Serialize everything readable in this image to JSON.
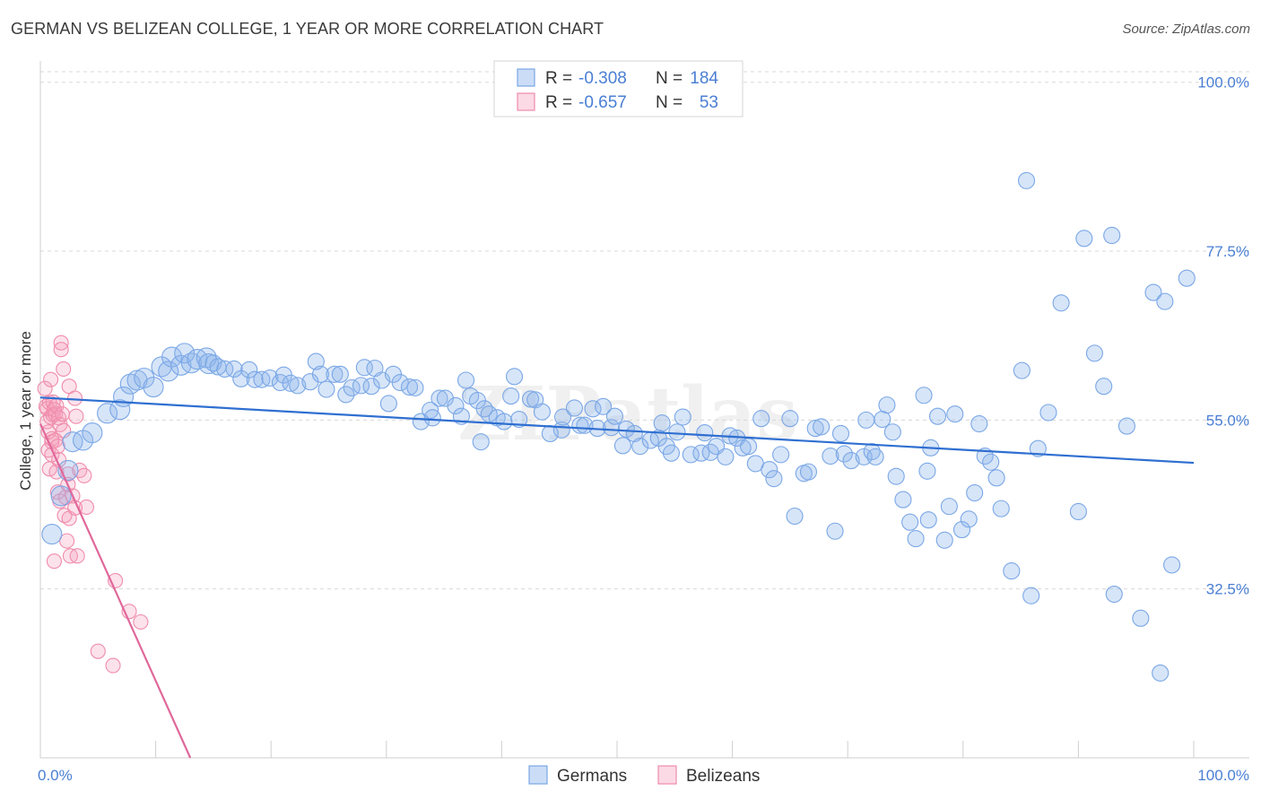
{
  "title": "GERMAN VS BELIZEAN COLLEGE, 1 YEAR OR MORE CORRELATION CHART",
  "source": "Source: ZipAtlas.com",
  "watermark": "ZIPatlas",
  "colors": {
    "german": "#7aa7e6",
    "german_fill": "rgba(140,180,235,0.35)",
    "german_line": "#2f6fd1",
    "belizean": "#f08cab",
    "belizean_fill": "rgba(245,160,190,0.30)",
    "belizean_line": "#e0689a",
    "grid": "#d8d8d8",
    "tick_label": "#4a7fd4"
  },
  "legend": {
    "rows": [
      {
        "r_label": "R = ",
        "r_value": "-0.308",
        "n_label": "N = ",
        "n_value": "184",
        "series": "german"
      },
      {
        "r_label": "R = ",
        "r_value": "-0.657",
        "n_label": "N = ",
        "n_value": "53",
        "series": "belizean"
      }
    ]
  },
  "bottom_legend": [
    {
      "label": "Germans",
      "series": "german"
    },
    {
      "label": "Belizeans",
      "series": "belizean"
    }
  ],
  "chart_data": {
    "type": "scatter",
    "title": "GERMAN VS BELIZEAN COLLEGE, 1 YEAR OR MORE CORRELATION CHART",
    "xlabel": "",
    "ylabel": "College, 1 year or more",
    "xlim": [
      0,
      100
    ],
    "ylim": [
      10,
      102
    ],
    "x_tick_labels": [
      {
        "value": 0,
        "label": "0.0%"
      },
      {
        "value": 100,
        "label": "100.0%"
      }
    ],
    "y_tick_labels": [
      {
        "value": 100,
        "label": "100.0%"
      },
      {
        "value": 77.5,
        "label": "77.5%"
      },
      {
        "value": 55,
        "label": "55.0%"
      },
      {
        "value": 32.5,
        "label": "32.5%"
      }
    ],
    "series": [
      {
        "name": "Germans",
        "key": "german",
        "R": -0.308,
        "N": 184,
        "trend": {
          "x0": 0,
          "y0": 58.0,
          "x1": 100,
          "y1": 49.3
        },
        "points": [
          [
            1,
            39.8
          ],
          [
            1.8,
            44.9
          ],
          [
            2.4,
            48.3
          ],
          [
            2.8,
            52.1
          ],
          [
            3.7,
            52.3
          ],
          [
            4.5,
            53.3
          ],
          [
            5.8,
            55.9
          ],
          [
            6.9,
            56.4
          ],
          [
            7.2,
            58.1
          ],
          [
            7.8,
            59.8
          ],
          [
            8.4,
            60.3
          ],
          [
            9,
            60.6
          ],
          [
            9.8,
            59.4
          ],
          [
            10.5,
            62.1
          ],
          [
            11.1,
            61.5
          ],
          [
            11.4,
            63.4
          ],
          [
            12.2,
            62.3
          ],
          [
            12.5,
            63.9
          ],
          [
            13.1,
            62.6
          ],
          [
            13.6,
            63.1
          ],
          [
            14.4,
            63.3
          ],
          [
            14.6,
            62.5
          ],
          [
            15,
            62.6
          ],
          [
            15.4,
            62.1
          ],
          [
            16,
            61.8
          ],
          [
            16.8,
            61.8
          ],
          [
            17.4,
            60.5
          ],
          [
            18.1,
            61.7
          ],
          [
            18.6,
            60.4
          ],
          [
            19.2,
            60.4
          ],
          [
            19.9,
            60.6
          ],
          [
            20.8,
            60
          ],
          [
            21.1,
            61
          ],
          [
            21.7,
            59.9
          ],
          [
            22.3,
            59.6
          ],
          [
            23.4,
            60.1
          ],
          [
            23.9,
            62.8
          ],
          [
            24.3,
            61.1
          ],
          [
            24.8,
            59.1
          ],
          [
            25.5,
            61.1
          ],
          [
            26,
            61.1
          ],
          [
            26.5,
            58.4
          ],
          [
            27,
            59.3
          ],
          [
            27.8,
            59.6
          ],
          [
            28.1,
            62
          ],
          [
            28.7,
            59.5
          ],
          [
            29,
            61.9
          ],
          [
            29.6,
            60.3
          ],
          [
            30.2,
            57.2
          ],
          [
            30.6,
            61.1
          ],
          [
            31.2,
            60
          ],
          [
            32,
            59.4
          ],
          [
            32.5,
            59.3
          ],
          [
            33,
            54.8
          ],
          [
            33.8,
            56.3
          ],
          [
            34,
            55.3
          ],
          [
            34.6,
            57.9
          ],
          [
            35.1,
            57.9
          ],
          [
            36,
            56.9
          ],
          [
            36.5,
            55.5
          ],
          [
            36.9,
            60.3
          ],
          [
            37.3,
            58.2
          ],
          [
            37.9,
            57.6
          ],
          [
            38.2,
            52.1
          ],
          [
            38.5,
            56.5
          ],
          [
            38.9,
            55.8
          ],
          [
            39.6,
            55.3
          ],
          [
            40.2,
            54.8
          ],
          [
            40.8,
            58.2
          ],
          [
            41.1,
            60.8
          ],
          [
            41.5,
            55.1
          ],
          [
            42.5,
            57.8
          ],
          [
            42.9,
            57.7
          ],
          [
            43.5,
            56.1
          ],
          [
            44.2,
            53.2
          ],
          [
            45.2,
            53.7
          ],
          [
            45.3,
            55.4
          ],
          [
            46.3,
            56.6
          ],
          [
            46.8,
            54.3
          ],
          [
            47.2,
            54.3
          ],
          [
            47.9,
            56.5
          ],
          [
            48.3,
            53.9
          ],
          [
            48.8,
            56.8
          ],
          [
            49.5,
            54
          ],
          [
            49.8,
            55.5
          ],
          [
            50.5,
            51.6
          ],
          [
            50.8,
            53.8
          ],
          [
            51.5,
            53.2
          ],
          [
            52,
            51.5
          ],
          [
            52.9,
            52.3
          ],
          [
            53.6,
            52.6
          ],
          [
            53.9,
            54.6
          ],
          [
            54.3,
            51.5
          ],
          [
            54.7,
            50.6
          ],
          [
            55.2,
            53.4
          ],
          [
            55.7,
            55.4
          ],
          [
            56.4,
            50.4
          ],
          [
            57.3,
            50.6
          ],
          [
            57.6,
            53.3
          ],
          [
            58.1,
            50.7
          ],
          [
            58.6,
            51.5
          ],
          [
            59.4,
            50.1
          ],
          [
            59.8,
            52.9
          ],
          [
            60.4,
            52.6
          ],
          [
            60.9,
            51.3
          ],
          [
            61.4,
            51.5
          ],
          [
            62,
            49.2
          ],
          [
            62.5,
            55.2
          ],
          [
            63.2,
            48.4
          ],
          [
            63.6,
            47.2
          ],
          [
            64.2,
            50.4
          ],
          [
            65,
            55.2
          ],
          [
            65.4,
            42.2
          ],
          [
            66.2,
            47.9
          ],
          [
            66.6,
            48.1
          ],
          [
            67.2,
            53.9
          ],
          [
            67.7,
            54.1
          ],
          [
            68.5,
            50.2
          ],
          [
            68.9,
            40.2
          ],
          [
            69.4,
            53.2
          ],
          [
            69.7,
            50.5
          ],
          [
            70.3,
            49.6
          ],
          [
            71.4,
            50.1
          ],
          [
            71.6,
            55
          ],
          [
            72.1,
            50.8
          ],
          [
            72.4,
            50.1
          ],
          [
            73,
            55.1
          ],
          [
            73.4,
            57
          ],
          [
            73.9,
            53.4
          ],
          [
            74.2,
            47.5
          ],
          [
            74.8,
            44.4
          ],
          [
            75.4,
            41.4
          ],
          [
            75.9,
            39.2
          ],
          [
            76.6,
            58.3
          ],
          [
            76.9,
            48.2
          ],
          [
            77,
            41.7
          ],
          [
            77.2,
            51.3
          ],
          [
            77.8,
            55.5
          ],
          [
            78.4,
            39
          ],
          [
            78.8,
            43.5
          ],
          [
            79.3,
            55.8
          ],
          [
            79.9,
            40.4
          ],
          [
            80.5,
            41.8
          ],
          [
            81,
            45.3
          ],
          [
            81.4,
            54.5
          ],
          [
            81.9,
            50.2
          ],
          [
            82.4,
            49.4
          ],
          [
            82.9,
            47.3
          ],
          [
            83.3,
            43.2
          ],
          [
            84.2,
            34.9
          ],
          [
            85.1,
            61.6
          ],
          [
            85.5,
            86.9
          ],
          [
            85.9,
            31.6
          ],
          [
            86.5,
            51.2
          ],
          [
            87.4,
            56
          ],
          [
            88.5,
            70.6
          ],
          [
            90,
            42.8
          ],
          [
            90.5,
            79.2
          ],
          [
            91.4,
            63.9
          ],
          [
            92.2,
            59.5
          ],
          [
            92.9,
            79.6
          ],
          [
            93.1,
            31.8
          ],
          [
            94.2,
            54.2
          ],
          [
            95.4,
            28.6
          ],
          [
            96.5,
            72
          ],
          [
            97.5,
            70.8
          ],
          [
            98.1,
            35.7
          ],
          [
            99.4,
            73.9
          ],
          [
            97.1,
            21.3
          ]
        ]
      },
      {
        "name": "Belizeans",
        "key": "belizean",
        "R": -0.657,
        "N": 53,
        "trend": {
          "x0": 0,
          "y0": 54.5,
          "x1": 13,
          "y1": 10
        },
        "points": [
          [
            0.4,
            59.2
          ],
          [
            0.5,
            56.8
          ],
          [
            0.6,
            54.8
          ],
          [
            0.6,
            56.5
          ],
          [
            0.7,
            53.4
          ],
          [
            0.7,
            51
          ],
          [
            0.8,
            48.5
          ],
          [
            0.8,
            57.3
          ],
          [
            0.9,
            55.4
          ],
          [
            0.9,
            60.4
          ],
          [
            1,
            52.5
          ],
          [
            1,
            52.1
          ],
          [
            1,
            50.4
          ],
          [
            1.1,
            55.7
          ],
          [
            1.1,
            57.4
          ],
          [
            1.2,
            56.4
          ],
          [
            1.3,
            52.3
          ],
          [
            1.3,
            55.8
          ],
          [
            1.4,
            56.9
          ],
          [
            1.4,
            48.1
          ],
          [
            1.5,
            51.5
          ],
          [
            1.5,
            45.4
          ],
          [
            1.6,
            55.3
          ],
          [
            1.6,
            49.7
          ],
          [
            1.7,
            54.4
          ],
          [
            1.7,
            44.2
          ],
          [
            1.8,
            65.3
          ],
          [
            1.8,
            64.4
          ],
          [
            1.9,
            55.8
          ],
          [
            2,
            53.6
          ],
          [
            2,
            61.8
          ],
          [
            2.1,
            42.3
          ],
          [
            2.2,
            44.7
          ],
          [
            2.3,
            38.9
          ],
          [
            2.4,
            47.8
          ],
          [
            2.4,
            46.4
          ],
          [
            2.5,
            41.9
          ],
          [
            2.5,
            59.5
          ],
          [
            2.6,
            36.9
          ],
          [
            2.8,
            44.9
          ],
          [
            3,
            57.9
          ],
          [
            3,
            43.3
          ],
          [
            3.1,
            55.5
          ],
          [
            3.2,
            36.9
          ],
          [
            3.4,
            48.3
          ],
          [
            3.8,
            47.6
          ],
          [
            4,
            43.4
          ],
          [
            5,
            24.2
          ],
          [
            6.3,
            22.3
          ],
          [
            6.5,
            33.6
          ],
          [
            7.7,
            29.5
          ],
          [
            8.7,
            28.1
          ],
          [
            1.2,
            36.2
          ]
        ]
      }
    ]
  }
}
